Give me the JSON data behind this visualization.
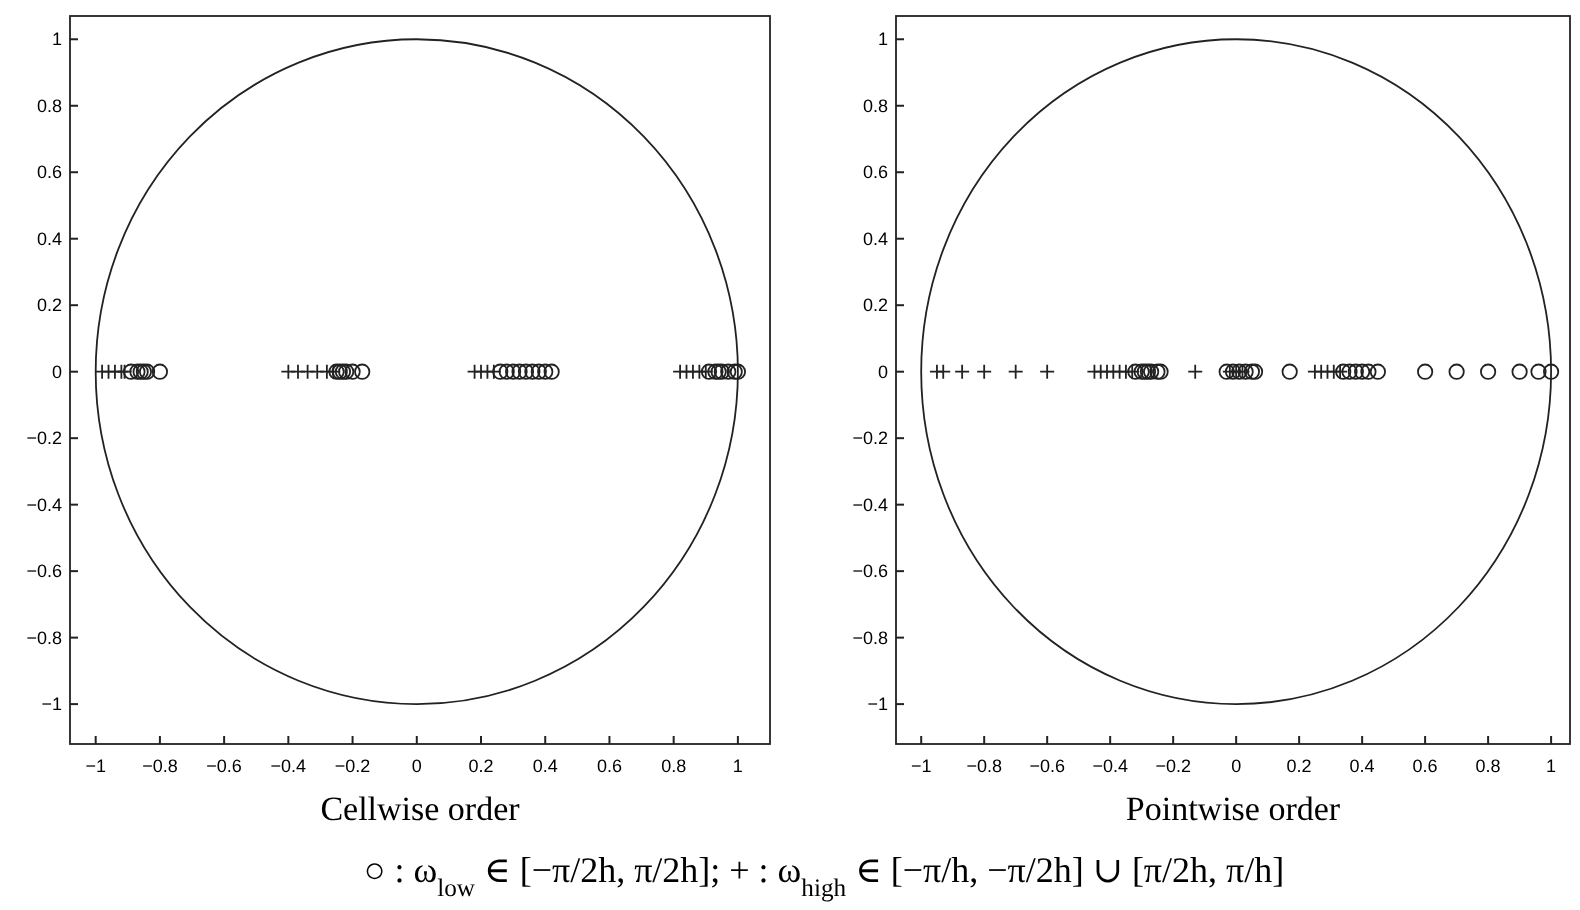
{
  "chart_data": [
    {
      "type": "scatter",
      "xlabel": "Cellwise order",
      "xlim": [
        -1.08,
        1.1
      ],
      "ylim": [
        -1.12,
        1.07
      ],
      "xticks": [
        -1,
        -0.8,
        -0.6,
        -0.4,
        -0.2,
        0,
        0.2,
        0.4,
        0.6,
        0.8,
        1
      ],
      "yticks": [
        -1,
        -0.8,
        -0.6,
        -0.4,
        -0.2,
        0,
        0.2,
        0.4,
        0.6,
        0.8,
        1
      ],
      "annotations": [
        "○ : ω$_{low}$ ∈ [−π/2h, π/2h];  + : ω$_{high}$ ∈ [−π/h, −π/2h] ∪ [π/2h, π/h]"
      ],
      "series": [
        {
          "color": "#222222",
          "marker": "cross",
          "x": [
            -0.98,
            -0.96,
            -0.94,
            -0.92,
            -0.91,
            -0.4,
            -0.37,
            -0.34,
            -0.31,
            -0.28,
            -0.26,
            0.18,
            0.2,
            0.22,
            0.24,
            0.82,
            0.84,
            0.86,
            0.88,
            0.9
          ],
          "values": [
            0,
            0,
            0,
            0,
            0,
            0,
            0,
            0,
            0,
            0,
            0,
            0,
            0,
            0,
            0,
            0,
            0,
            0,
            0,
            0
          ]
        },
        {
          "color": "#222222",
          "marker": "circle",
          "x": [
            -0.89,
            -0.87,
            -0.86,
            -0.85,
            -0.84,
            -0.8,
            -0.25,
            -0.24,
            -0.23,
            -0.22,
            -0.2,
            -0.17,
            0.26,
            0.28,
            0.3,
            0.32,
            0.34,
            0.36,
            0.38,
            0.4,
            0.42,
            0.91,
            0.93,
            0.94,
            0.95,
            0.97,
            0.99,
            1
          ],
          "values": [
            0,
            0,
            0,
            0,
            0,
            0,
            0,
            0,
            0,
            0,
            0,
            0,
            0,
            0,
            0,
            0,
            0,
            0,
            0,
            0,
            0,
            0,
            0,
            0,
            0,
            0,
            0,
            0
          ]
        }
      ]
    },
    {
      "type": "scatter",
      "xlabel": "Pointwise order",
      "xlim": [
        -1.08,
        1.06
      ],
      "ylim": [
        -1.12,
        1.07
      ],
      "xticks": [
        -1,
        -0.8,
        -0.6,
        -0.4,
        -0.2,
        0,
        0.2,
        0.4,
        0.6,
        0.8,
        1
      ],
      "yticks": [
        -1,
        -0.8,
        -0.6,
        -0.4,
        -0.2,
        0,
        0.2,
        0.4,
        0.6,
        0.8,
        1
      ],
      "series": [
        {
          "color": "#222222",
          "marker": "cross",
          "x": [
            -0.95,
            -0.93,
            -0.87,
            -0.8,
            -0.7,
            -0.6,
            -0.45,
            -0.43,
            -0.41,
            -0.39,
            -0.37,
            -0.35,
            -0.33,
            -0.13,
            -0.02,
            0,
            0.02,
            0.25,
            0.27,
            0.29,
            0.31,
            0.33
          ],
          "values": [
            0,
            0,
            0,
            0,
            0,
            0,
            0,
            0,
            0,
            0,
            0,
            0,
            0,
            0,
            0,
            0,
            0,
            0,
            0,
            0,
            0,
            0
          ]
        },
        {
          "color": "#222222",
          "marker": "circle",
          "x": [
            -0.32,
            -0.3,
            -0.29,
            -0.28,
            -0.27,
            -0.25,
            -0.24,
            -0.03,
            -0.01,
            0.01,
            0.03,
            0.05,
            0.06,
            0.17,
            0.34,
            0.36,
            0.38,
            0.4,
            0.42,
            0.45,
            0.6,
            0.7,
            0.8,
            0.9,
            0.96,
            1
          ],
          "values": [
            0,
            0,
            0,
            0,
            0,
            0,
            0,
            0,
            0,
            0,
            0,
            0,
            0,
            0,
            0,
            0,
            0,
            0,
            0,
            0,
            0,
            0,
            0,
            0,
            0,
            0
          ]
        }
      ]
    }
  ]
}
